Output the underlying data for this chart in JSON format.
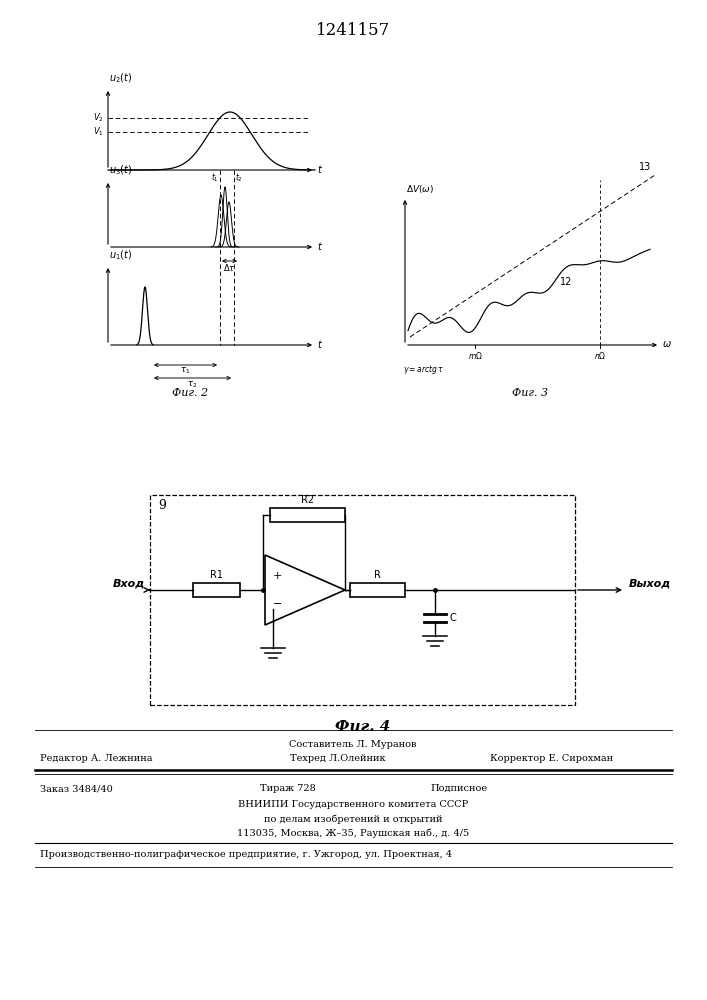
{
  "title": "1241157",
  "fig2_caption": "Фиг. 2",
  "fig3_caption": "Фиг. 3",
  "fig4_caption": "Фиг. 4",
  "footer_sestavitel": "Составитель Л. Муранов",
  "footer_redaktor": "Редактор А. Лежнина",
  "footer_tehred": "Техред Л.Олейник",
  "footer_korrektor": "Корректор Е. Сирохман",
  "footer_zakaz": "Заказ 3484/40",
  "footer_tirazh": "Тираж 728",
  "footer_podpisnoe": "Подписное",
  "footer_vniiipi": "ВНИИПИ Государственного комитета СССР",
  "footer_po_delam": "по делам изобретений и открытий",
  "footer_address": "113035, Москва, Ж–35, Раушская наб., д. 4/5",
  "footer_proizv": "Производственно-полиграфическое предприятие, г. Ужгород, ул. Проектная, 4"
}
